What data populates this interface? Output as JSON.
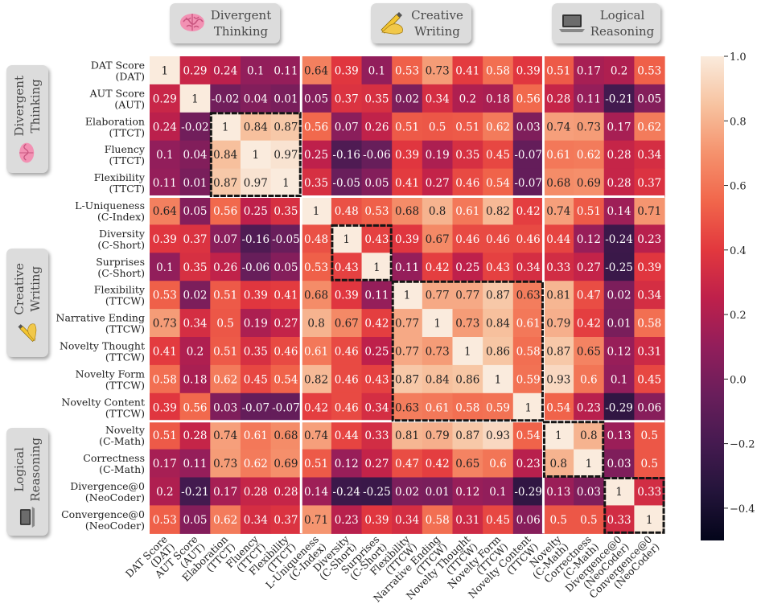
{
  "chart_data": {
    "type": "heatmap",
    "title": "",
    "labels": [
      "DAT Score\n(DAT)",
      "AUT Score\n(AUT)",
      "Elaboration\n(TTCT)",
      "Fluency\n(TTCT)",
      "Flexibility\n(TTCT)",
      "L-Uniqueness\n(C-Index)",
      "Diversity\n(C-Short)",
      "Surprises\n(C-Short)",
      "Flexibility\n(TTCW)",
      "Narrative Ending\n(TTCW)",
      "Novelty Thought\n(TTCW)",
      "Novelty Form\n(TTCW)",
      "Novelty Content\n(TTCW)",
      "Novelty\n(C-Math)",
      "Correctness\n(C-Math)",
      "Divergence@0\n(NeoCoder)",
      "Convergence@0\n(NeoCoder)"
    ],
    "matrix": [
      [
        "1",
        "0.29",
        "0.24",
        "0.1",
        "0.11",
        "0.64",
        "0.39",
        "0.1",
        "0.53",
        "0.73",
        "0.41",
        "0.58",
        "0.39",
        "0.51",
        "0.17",
        "0.2",
        "0.53"
      ],
      [
        "0.29",
        "1",
        "-0.02",
        "0.04",
        "0.01",
        "0.05",
        "0.37",
        "0.35",
        "0.02",
        "0.34",
        "0.2",
        "0.18",
        "0.56",
        "0.28",
        "0.11",
        "-0.21",
        "0.05"
      ],
      [
        "0.24",
        "-0.02",
        "1",
        "0.84",
        "0.87",
        "0.56",
        "0.07",
        "0.26",
        "0.51",
        "0.5",
        "0.51",
        "0.62",
        "0.03",
        "0.74",
        "0.73",
        "0.17",
        "0.62"
      ],
      [
        "0.1",
        "0.04",
        "0.84",
        "1",
        "0.97",
        "0.25",
        "-0.16",
        "-0.06",
        "0.39",
        "0.19",
        "0.35",
        "0.45",
        "-0.07",
        "0.61",
        "0.62",
        "0.28",
        "0.34"
      ],
      [
        "0.11",
        "0.01",
        "0.87",
        "0.97",
        "1",
        "0.35",
        "-0.05",
        "0.05",
        "0.41",
        "0.27",
        "0.46",
        "0.54",
        "-0.07",
        "0.68",
        "0.69",
        "0.28",
        "0.37"
      ],
      [
        "0.64",
        "0.05",
        "0.56",
        "0.25",
        "0.35",
        "1",
        "0.48",
        "0.53",
        "0.68",
        "0.8",
        "0.61",
        "0.82",
        "0.42",
        "0.74",
        "0.51",
        "0.14",
        "0.71"
      ],
      [
        "0.39",
        "0.37",
        "0.07",
        "-0.16",
        "-0.05",
        "0.48",
        "1",
        "0.43",
        "0.39",
        "0.67",
        "0.46",
        "0.46",
        "0.46",
        "0.44",
        "0.12",
        "-0.24",
        "0.23"
      ],
      [
        "0.1",
        "0.35",
        "0.26",
        "-0.06",
        "0.05",
        "0.53",
        "0.43",
        "1",
        "0.11",
        "0.42",
        "0.25",
        "0.43",
        "0.34",
        "0.33",
        "0.27",
        "-0.25",
        "0.39"
      ],
      [
        "0.53",
        "0.02",
        "0.51",
        "0.39",
        "0.41",
        "0.68",
        "0.39",
        "0.11",
        "1",
        "0.77",
        "0.77",
        "0.87",
        "0.63",
        "0.81",
        "0.47",
        "0.02",
        "0.34"
      ],
      [
        "0.73",
        "0.34",
        "0.5",
        "0.19",
        "0.27",
        "0.8",
        "0.67",
        "0.42",
        "0.77",
        "1",
        "0.73",
        "0.84",
        "0.61",
        "0.79",
        "0.42",
        "0.01",
        "0.58"
      ],
      [
        "0.41",
        "0.2",
        "0.51",
        "0.35",
        "0.46",
        "0.61",
        "0.46",
        "0.25",
        "0.77",
        "0.73",
        "1",
        "0.86",
        "0.58",
        "0.87",
        "0.65",
        "0.12",
        "0.31"
      ],
      [
        "0.58",
        "0.18",
        "0.62",
        "0.45",
        "0.54",
        "0.82",
        "0.46",
        "0.43",
        "0.87",
        "0.84",
        "0.86",
        "1",
        "0.59",
        "0.93",
        "0.6",
        "0.1",
        "0.45"
      ],
      [
        "0.39",
        "0.56",
        "0.03",
        "-0.07",
        "-0.07",
        "0.42",
        "0.46",
        "0.34",
        "0.63",
        "0.61",
        "0.58",
        "0.59",
        "1",
        "0.54",
        "0.23",
        "-0.29",
        "0.06"
      ],
      [
        "0.51",
        "0.28",
        "0.74",
        "0.61",
        "0.68",
        "0.74",
        "0.44",
        "0.33",
        "0.81",
        "0.79",
        "0.87",
        "0.93",
        "0.54",
        "1",
        "0.8",
        "0.13",
        "0.5"
      ],
      [
        "0.17",
        "0.11",
        "0.73",
        "0.62",
        "0.69",
        "0.51",
        "0.12",
        "0.27",
        "0.47",
        "0.42",
        "0.65",
        "0.6",
        "0.23",
        "0.8",
        "1",
        "0.03",
        "0.5"
      ],
      [
        "0.2",
        "-0.21",
        "0.17",
        "0.28",
        "0.28",
        "0.14",
        "-0.24",
        "-0.25",
        "0.02",
        "0.01",
        "0.12",
        "0.1",
        "-0.29",
        "0.13",
        "0.03",
        "1",
        "0.33"
      ],
      [
        "0.53",
        "0.05",
        "0.62",
        "0.34",
        "0.37",
        "0.71",
        "0.23",
        "0.39",
        "0.34",
        "0.58",
        "0.31",
        "0.45",
        "0.06",
        "0.5",
        "0.5",
        "0.33",
        "1"
      ]
    ],
    "colorbar": {
      "range": [
        -0.5,
        1.0
      ],
      "ticks": [
        "1.0",
        "0.8",
        "0.6",
        "0.4",
        "0.2",
        "0.0",
        "−0.2",
        "−0.4"
      ],
      "tick_values": [
        1.0,
        0.8,
        0.6,
        0.4,
        0.2,
        0.0,
        -0.2,
        -0.4
      ]
    },
    "groups": [
      {
        "name": "Divergent\nThinking",
        "start": 0,
        "end": 4
      },
      {
        "name": "Creative\nWriting",
        "start": 5,
        "end": 12
      },
      {
        "name": "Logical\nReasoning",
        "start": 13,
        "end": 16
      }
    ],
    "highlight_blocks": [
      [
        2,
        4
      ],
      [
        6,
        7
      ],
      [
        8,
        12
      ],
      [
        13,
        14
      ],
      [
        15,
        16
      ]
    ]
  },
  "categories": {
    "divergent": {
      "label": "Divergent\nThinking",
      "icon": "brain-icon"
    },
    "creative": {
      "label": "Creative\nWriting",
      "icon": "writing-hand-icon"
    },
    "logical": {
      "label": "Logical\nReasoning",
      "icon": "laptop-icon"
    }
  }
}
